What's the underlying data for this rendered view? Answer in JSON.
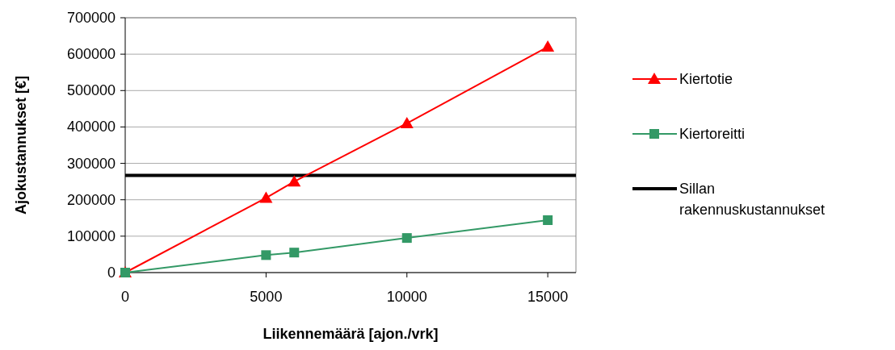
{
  "chart_data": {
    "type": "line",
    "xlabel": "Liikennemäärä [ajon./vrk]",
    "ylabel": "Ajokustannukset [€]",
    "x": [
      0,
      5000,
      6000,
      10000,
      15000
    ],
    "series": [
      {
        "name": "Kiertotie",
        "color": "#ff0000",
        "marker": "triangle",
        "values": [
          0,
          205000,
          250000,
          410000,
          620000
        ]
      },
      {
        "name": "Kiertoreitti",
        "color": "#339966",
        "marker": "square",
        "values": [
          0,
          48000,
          55000,
          95000,
          144000
        ]
      }
    ],
    "ref_lines": [
      {
        "axis": "y",
        "value": 267000,
        "label": "Sillan rakennuskustannukset",
        "color": "#000000"
      }
    ],
    "xlim": [
      0,
      16000
    ],
    "xticks": [
      0,
      5000,
      10000,
      15000
    ],
    "ylim": [
      0,
      700000
    ],
    "yticks": [
      0,
      100000,
      200000,
      300000,
      400000,
      500000,
      600000,
      700000
    ],
    "grid": "y",
    "legend": "right",
    "line_style": "solid"
  }
}
